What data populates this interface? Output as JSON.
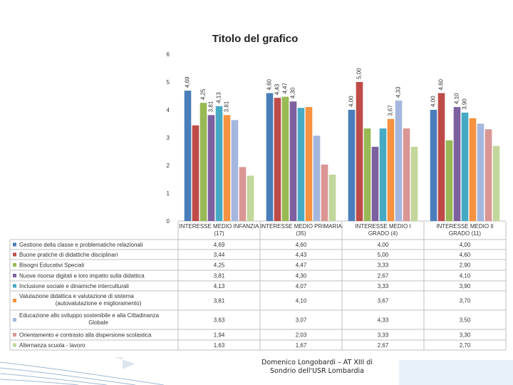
{
  "chart_data": {
    "type": "bar",
    "title": "Titolo del grafico",
    "xlabel": "",
    "ylabel": "",
    "ylim": [
      0,
      6
    ],
    "yticks": [
      "0",
      "1",
      "2",
      "3",
      "4",
      "5",
      "6"
    ],
    "grid": false,
    "legend_placement": "data table below chart",
    "categories": [
      "INTERESSE MEDIO INFANZIA (17)",
      "INTERESSE MEDIO PRIMARIA (35)",
      "INTERESSE MEDIO I GRADO (4)",
      "INTERESSE MEDIO II GRADO (11)"
    ],
    "series": [
      {
        "name": "Gestione della classe e problematiche relazionali",
        "color": "#4a7ebb",
        "values": [
          4.69,
          4.6,
          4.0,
          4.0
        ],
        "labels": [
          "4,69",
          "4,60",
          "4,00",
          "4,00"
        ],
        "show_label": true
      },
      {
        "name": "Buone pratiche di didattiche disciplinari",
        "color": "#be4b48",
        "values": [
          3.44,
          4.43,
          5.0,
          4.6
        ],
        "labels": [
          "3,44",
          "4,43",
          "5,00",
          "4,60"
        ],
        "show_label": false
      },
      {
        "name": "Bisogni Educativi Speciali",
        "color": "#98b954",
        "values": [
          4.25,
          4.47,
          3.33,
          2.9
        ],
        "labels": [
          "4,25",
          "4,47",
          "3,33",
          "2,90"
        ],
        "show_label": false
      },
      {
        "name": "Nuove risorse digitali e loro impatto sulla didattica",
        "color": "#7d60a0",
        "values": [
          3.81,
          4.3,
          2.67,
          4.1
        ],
        "labels": [
          "3,81",
          "4,30",
          "2,67",
          "4,10"
        ],
        "show_label": false
      },
      {
        "name": "Inclusione sociale e dinamiche interculturali",
        "color": "#46aac5",
        "values": [
          4.13,
          4.07,
          3.33,
          3.9
        ],
        "labels": [
          "4,13",
          "4,07",
          "3,33",
          "3,90"
        ],
        "show_label": false
      },
      {
        "name": "Valutazione didattica e valutazione di sistema (autovalutazione e miglioramento)",
        "color": "#f69240",
        "values": [
          3.81,
          4.1,
          3.67,
          3.7
        ],
        "labels": [
          "3,81",
          "4,10",
          "3,67",
          "3,70"
        ],
        "show_label": false
      },
      {
        "name": "Educazione allo sviluppo sostenibile e alla Cittadinanza Globale",
        "color": "#a5b7de",
        "values": [
          3.63,
          3.07,
          4.33,
          3.5
        ],
        "labels": [
          "3,63",
          "3,07",
          "4,33",
          "3,50"
        ],
        "show_label": false
      },
      {
        "name": "Orientamento e contrasto alla dispersione scolastica",
        "color": "#d99694",
        "values": [
          1.94,
          2.03,
          3.33,
          3.3
        ],
        "labels": [
          "1,94",
          "2,03",
          "3,33",
          "3,30"
        ],
        "show_label": false
      },
      {
        "name": "Alternanza scuola - lavoro",
        "color": "#c3d69b",
        "values": [
          1.63,
          1.67,
          2.67,
          2.7
        ],
        "labels": [
          "1,63",
          "1,67",
          "2,67",
          "2,70"
        ],
        "show_label": false
      }
    ],
    "bar_labels_shown": [
      [
        true,
        false,
        true,
        true,
        true,
        true,
        false,
        false,
        false
      ],
      [
        true,
        true,
        true,
        true,
        false,
        false,
        false,
        false,
        false
      ],
      [
        true,
        true,
        false,
        false,
        false,
        true,
        true,
        false,
        false
      ],
      [
        true,
        true,
        false,
        true,
        true,
        false,
        false,
        false,
        false
      ]
    ]
  },
  "footer": {
    "line1": "Domenico Longobardi – AT XIII di",
    "line2": "Sondrio dell'USR Lombardia"
  }
}
